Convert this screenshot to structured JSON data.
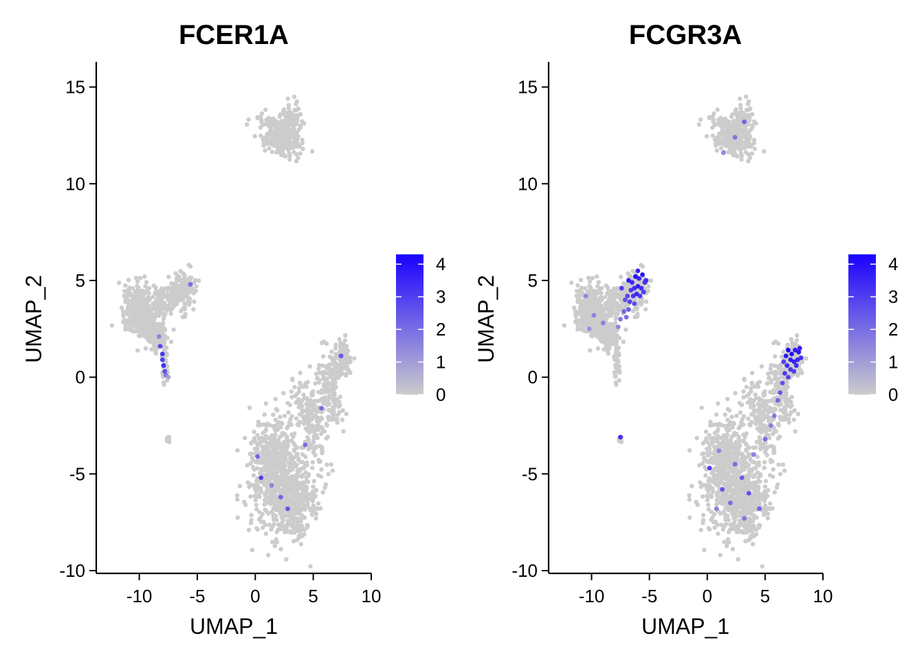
{
  "colors": {
    "low": "#cccccc",
    "high": "#1a00ff",
    "axis": "#000000"
  },
  "axes": {
    "x": {
      "label": "UMAP_1",
      "ticks": [
        -10,
        -5,
        0,
        5,
        10
      ],
      "lim": [
        -13,
        10
      ]
    },
    "y": {
      "label": "UMAP_2",
      "ticks": [
        15,
        10,
        5,
        0,
        -5,
        -10
      ],
      "lim": [
        -10,
        16.3
      ]
    }
  },
  "legend": {
    "ticks": [
      0,
      1,
      2,
      3,
      4
    ],
    "max": 4.3,
    "placement": "right"
  },
  "chart_data": [
    {
      "type": "scatter",
      "title": "FCER1A",
      "xlabel": "UMAP_1",
      "ylabel": "UMAP_2",
      "color_scale": {
        "min": 0,
        "max": 4.3
      },
      "high_points": [
        {
          "x": -8.2,
          "y": 1.6,
          "v": 2.8
        },
        {
          "x": -8.0,
          "y": 1.2,
          "v": 3.2
        },
        {
          "x": -8.0,
          "y": 0.9,
          "v": 3.0
        },
        {
          "x": -7.9,
          "y": 0.6,
          "v": 3.3
        },
        {
          "x": -7.8,
          "y": 0.3,
          "v": 2.6
        },
        {
          "x": -7.7,
          "y": 0.1,
          "v": 1.8
        },
        {
          "x": -7.5,
          "y": 0.0,
          "v": 0.9
        },
        {
          "x": -8.3,
          "y": 2.1,
          "v": 1.5
        },
        {
          "x": -5.6,
          "y": 4.8,
          "v": 2.0
        },
        {
          "x": 7.4,
          "y": 1.1,
          "v": 2.5
        },
        {
          "x": 5.7,
          "y": -1.6,
          "v": 2.0
        },
        {
          "x": 0.2,
          "y": -4.1,
          "v": 2.2
        },
        {
          "x": 0.5,
          "y": -5.2,
          "v": 3.0
        },
        {
          "x": 4.3,
          "y": -3.5,
          "v": 2.0
        },
        {
          "x": 2.2,
          "y": -6.2,
          "v": 2.2
        },
        {
          "x": 2.8,
          "y": -6.8,
          "v": 2.5
        },
        {
          "x": 1.4,
          "y": -5.6,
          "v": 1.5
        }
      ]
    },
    {
      "type": "scatter",
      "title": "FCGR3A",
      "xlabel": "UMAP_1",
      "ylabel": "UMAP_2",
      "color_scale": {
        "min": 0,
        "max": 4.3
      },
      "high_points": [
        {
          "x": -6.8,
          "y": 5.0,
          "v": 3.8
        },
        {
          "x": -6.5,
          "y": 4.9,
          "v": 3.5
        },
        {
          "x": -6.2,
          "y": 5.2,
          "v": 4.0
        },
        {
          "x": -5.9,
          "y": 5.1,
          "v": 3.6
        },
        {
          "x": -5.6,
          "y": 5.3,
          "v": 3.9
        },
        {
          "x": -5.4,
          "y": 4.9,
          "v": 3.2
        },
        {
          "x": -6.6,
          "y": 4.5,
          "v": 3.1
        },
        {
          "x": -6.3,
          "y": 4.6,
          "v": 3.4
        },
        {
          "x": -6.0,
          "y": 4.7,
          "v": 3.7
        },
        {
          "x": -5.7,
          "y": 4.6,
          "v": 3.3
        },
        {
          "x": -5.5,
          "y": 4.4,
          "v": 3.0
        },
        {
          "x": -6.9,
          "y": 4.2,
          "v": 2.8
        },
        {
          "x": -6.4,
          "y": 4.2,
          "v": 3.2
        },
        {
          "x": -6.1,
          "y": 4.3,
          "v": 3.5
        },
        {
          "x": -5.8,
          "y": 4.2,
          "v": 3.1
        },
        {
          "x": -7.1,
          "y": 4.0,
          "v": 2.6
        },
        {
          "x": -6.7,
          "y": 3.9,
          "v": 2.9
        },
        {
          "x": -6.3,
          "y": 3.8,
          "v": 2.7
        },
        {
          "x": -7.2,
          "y": 3.4,
          "v": 2.2
        },
        {
          "x": -6.8,
          "y": 3.5,
          "v": 2.4
        },
        {
          "x": -7.5,
          "y": 3.0,
          "v": 1.8
        },
        {
          "x": -7.0,
          "y": 3.1,
          "v": 2.0
        },
        {
          "x": -7.7,
          "y": 2.6,
          "v": 1.5
        },
        {
          "x": -6.0,
          "y": 5.5,
          "v": 3.6
        },
        {
          "x": -5.3,
          "y": 5.0,
          "v": 3.4
        },
        {
          "x": -7.4,
          "y": 4.6,
          "v": 3.0
        },
        {
          "x": -9.8,
          "y": 3.2,
          "v": 1.5
        },
        {
          "x": -10.2,
          "y": 2.5,
          "v": 1.2
        },
        {
          "x": -9.0,
          "y": 2.8,
          "v": 1.6
        },
        {
          "x": -10.5,
          "y": 4.2,
          "v": 1.4
        },
        {
          "x": 7.0,
          "y": 1.4,
          "v": 4.3
        },
        {
          "x": 7.3,
          "y": 1.2,
          "v": 4.0
        },
        {
          "x": 7.6,
          "y": 1.4,
          "v": 3.8
        },
        {
          "x": 7.9,
          "y": 1.3,
          "v": 3.9
        },
        {
          "x": 7.2,
          "y": 0.9,
          "v": 3.7
        },
        {
          "x": 7.5,
          "y": 0.8,
          "v": 3.6
        },
        {
          "x": 7.8,
          "y": 0.9,
          "v": 3.5
        },
        {
          "x": 8.1,
          "y": 1.0,
          "v": 3.3
        },
        {
          "x": 6.9,
          "y": 0.6,
          "v": 3.4
        },
        {
          "x": 7.2,
          "y": 0.4,
          "v": 3.2
        },
        {
          "x": 7.5,
          "y": 0.3,
          "v": 3.0
        },
        {
          "x": 6.7,
          "y": 0.2,
          "v": 3.1
        },
        {
          "x": 7.0,
          "y": 0.0,
          "v": 2.9
        },
        {
          "x": 6.5,
          "y": -0.3,
          "v": 2.6
        },
        {
          "x": 6.3,
          "y": -0.8,
          "v": 2.4
        },
        {
          "x": 6.1,
          "y": -1.2,
          "v": 2.2
        },
        {
          "x": 5.8,
          "y": -2.0,
          "v": 1.8
        },
        {
          "x": 5.5,
          "y": -2.5,
          "v": 1.6
        },
        {
          "x": 6.6,
          "y": 0.8,
          "v": 3.0
        },
        {
          "x": 7.7,
          "y": 0.6,
          "v": 3.4
        },
        {
          "x": 8.0,
          "y": 1.5,
          "v": 3.7
        },
        {
          "x": 6.8,
          "y": 1.1,
          "v": 3.8
        },
        {
          "x": 0.2,
          "y": -4.7,
          "v": 3.0
        },
        {
          "x": 1.3,
          "y": -5.8,
          "v": 2.5
        },
        {
          "x": 2.4,
          "y": -4.5,
          "v": 2.0
        },
        {
          "x": 3.6,
          "y": -6.0,
          "v": 2.6
        },
        {
          "x": 4.5,
          "y": -6.8,
          "v": 2.2
        },
        {
          "x": 3.2,
          "y": -7.3,
          "v": 1.8
        },
        {
          "x": 2.0,
          "y": -6.5,
          "v": 2.0
        },
        {
          "x": 4.0,
          "y": -4.0,
          "v": 1.6
        },
        {
          "x": 1.0,
          "y": -3.8,
          "v": 1.5
        },
        {
          "x": 5.0,
          "y": -3.2,
          "v": 2.0
        },
        {
          "x": 3.0,
          "y": -5.2,
          "v": 2.4
        },
        {
          "x": 0.8,
          "y": -6.8,
          "v": 1.6
        },
        {
          "x": 2.4,
          "y": 12.4,
          "v": 1.8
        },
        {
          "x": 3.2,
          "y": 13.2,
          "v": 2.2
        },
        {
          "x": 1.4,
          "y": 11.6,
          "v": 1.4
        },
        {
          "x": -7.5,
          "y": -3.1,
          "v": 3.4
        }
      ]
    }
  ]
}
